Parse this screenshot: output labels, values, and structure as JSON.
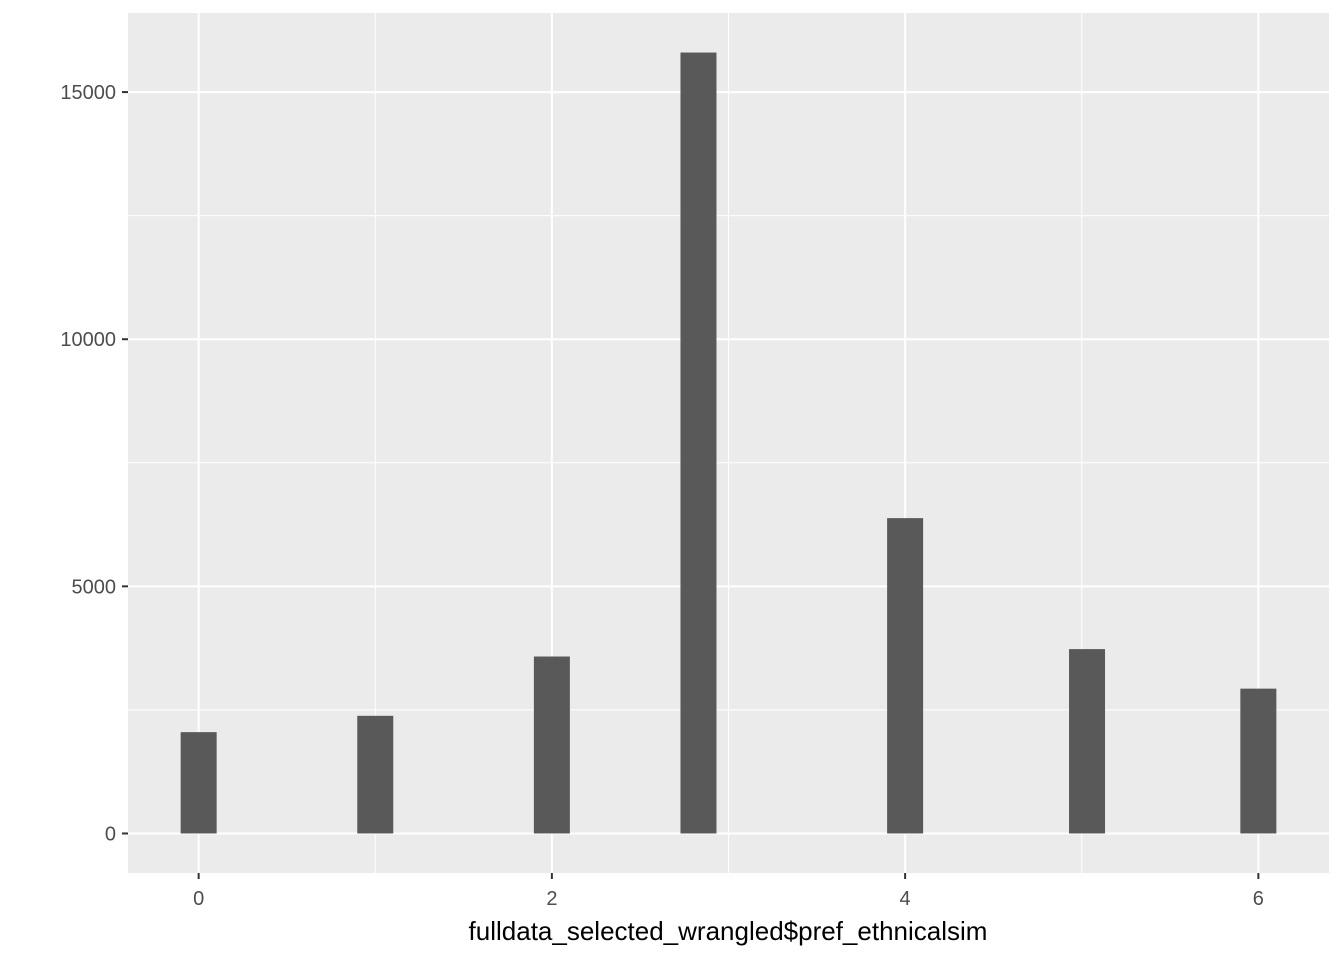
{
  "chart_data": {
    "type": "bar",
    "title": "",
    "xlabel": "fulldata_selected_wrangled$pref_ethnicalsim",
    "ylabel": "",
    "x": [
      0,
      1,
      2,
      2.83,
      4,
      5.03,
      6
    ],
    "values": [
      2050,
      2380,
      3580,
      15800,
      6380,
      3730,
      2930
    ],
    "xlim": [
      -0.4,
      6.4
    ],
    "ylim": [
      -800,
      16600
    ],
    "x_ticks": [
      0,
      2,
      4,
      6
    ],
    "x_tick_labels": [
      "0",
      "2",
      "4",
      "6"
    ],
    "y_ticks": [
      0,
      5000,
      10000,
      15000
    ],
    "y_tick_labels": [
      "0",
      "5000",
      "10000",
      "15000"
    ],
    "grid": true,
    "colors": {
      "panel": "#ebebeb",
      "grid": "#ffffff",
      "bar": "#595959"
    }
  }
}
